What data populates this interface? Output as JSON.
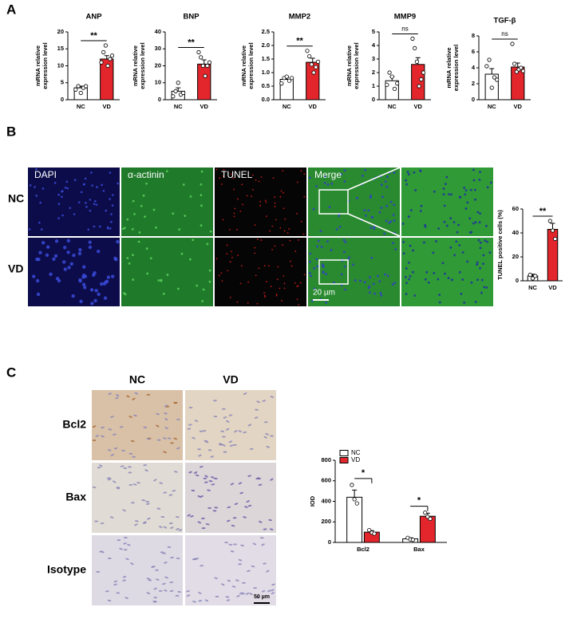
{
  "panel_labels": [
    "A",
    "B",
    "C"
  ],
  "panel_b": {
    "columns": [
      "DAPI",
      "α-actinin",
      "TUNEL",
      "Merge"
    ],
    "rows": [
      "NC",
      "VD"
    ],
    "scale_bar": "20 µm"
  },
  "panel_c": {
    "columns": [
      "NC",
      "VD"
    ],
    "rows": [
      "Bcl2",
      "Bax",
      "Isotype"
    ],
    "scale_bar": "50 µm"
  },
  "chart_data": [
    {
      "type": "bar",
      "title": "ANP",
      "ylabel_lines": [
        "mRNA relative",
        "expression level"
      ],
      "categories": [
        "NC",
        "VD"
      ],
      "values": [
        3.5,
        12
      ],
      "errors": [
        0.5,
        1
      ],
      "colors": [
        "#ffffff",
        "#e3262b"
      ],
      "points": [
        [
          3,
          4,
          2,
          3.5,
          4
        ],
        [
          11,
          14,
          16,
          10,
          12,
          13
        ]
      ],
      "annotation": "**",
      "ylim": [
        0,
        20
      ],
      "yticks": [
        0,
        5,
        10,
        15,
        20
      ]
    },
    {
      "type": "bar",
      "title": "BNP",
      "ylabel_lines": [
        "mRNA relative",
        "expression level"
      ],
      "categories": [
        "NC",
        "VD"
      ],
      "values": [
        5,
        21
      ],
      "errors": [
        2,
        2.5
      ],
      "colors": [
        "#ffffff",
        "#e3262b"
      ],
      "points": [
        [
          2,
          5,
          10,
          3,
          4
        ],
        [
          28,
          25,
          20,
          14,
          20,
          22
        ]
      ],
      "annotation": "**",
      "ylim": [
        0,
        40
      ],
      "yticks": [
        0,
        10,
        20,
        30,
        40
      ]
    },
    {
      "type": "bar",
      "title": "MMP2",
      "ylabel_lines": [
        "mRNA relative",
        "expression level"
      ],
      "categories": [
        "NC",
        "VD"
      ],
      "values": [
        0.75,
        1.38
      ],
      "errors": [
        0.07,
        0.15
      ],
      "colors": [
        "#ffffff",
        "#e3262b"
      ],
      "points": [
        [
          0.6,
          0.8,
          0.85,
          0.7,
          0.8
        ],
        [
          1.8,
          1.6,
          1.3,
          1.0,
          1.2,
          1.4
        ]
      ],
      "annotation": "**",
      "ylim": [
        0,
        2.5
      ],
      "yticks": [
        {
          "value": 0,
          "label": "0.0"
        },
        0.5,
        {
          "value": 1,
          "label": "1.0"
        },
        1.5,
        {
          "value": 2,
          "label": "2.0"
        },
        2.5
      ]
    },
    {
      "type": "bar",
      "title": "MMP9",
      "ylabel_lines": [
        "mRNA relative",
        "expression level"
      ],
      "categories": [
        "NC",
        "VD"
      ],
      "values": [
        1.4,
        2.6
      ],
      "errors": [
        0.3,
        0.5
      ],
      "colors": [
        "#ffffff",
        "#e3262b"
      ],
      "points": [
        [
          1.1,
          2.0,
          1.7,
          0.8,
          1.2
        ],
        [
          4.5,
          3.8,
          2.8,
          1.0,
          1.5,
          2.0
        ]
      ],
      "annotation": "ns",
      "ylim": [
        0,
        5
      ],
      "yticks": [
        0,
        1,
        2,
        3,
        4,
        5
      ]
    },
    {
      "type": "bar",
      "title": "TGF-β",
      "ylabel_lines": [
        "mRNA relative",
        "expression level"
      ],
      "categories": [
        "NC",
        "VD"
      ],
      "values": [
        3.2,
        4.1
      ],
      "errors": [
        0.7,
        0.5
      ],
      "colors": [
        "#ffffff",
        "#e3262b"
      ],
      "points": [
        [
          4.2,
          5.0,
          1.5,
          2.8,
          2.5
        ],
        [
          7.0,
          4.5,
          3.5,
          3.8,
          4.0,
          3.6
        ]
      ],
      "annotation": "ns",
      "ylim": [
        0,
        8
      ],
      "yticks": [
        0,
        2,
        4,
        6,
        8
      ]
    },
    {
      "type": "bar",
      "ylabel_lines": [
        "TUNEL positive cells (%)"
      ],
      "categories": [
        "NC",
        "VD"
      ],
      "values": [
        4,
        43
      ],
      "errors": [
        1.5,
        5
      ],
      "colors": [
        "#ffffff",
        "#e3262b"
      ],
      "points": [
        [
          5,
          2,
          4
        ],
        [
          50,
          42,
          35
        ]
      ],
      "annotation": "**",
      "ylim": [
        0,
        60
      ],
      "yticks": [
        0,
        20,
        40,
        60
      ]
    },
    {
      "type": "grouped_bar",
      "ylabel_lines": [
        "IOD"
      ],
      "categories": [
        "Bcl2",
        "Bax"
      ],
      "series": [
        {
          "name": "NC",
          "color": "#ffffff",
          "values": [
            440,
            35
          ],
          "errors": [
            70,
            10
          ],
          "points": [
            [
              560,
              420,
              380
            ],
            [
              45,
              30,
              25
            ]
          ]
        },
        {
          "name": "VD",
          "color": "#e3262b",
          "values": [
            100,
            255
          ],
          "errors": [
            15,
            30
          ],
          "points": [
            [
              120,
              95,
              85
            ],
            [
              290,
              250,
              230
            ]
          ]
        }
      ],
      "annotations": [
        "*",
        "*"
      ],
      "legend": "top-left",
      "ylim": [
        0,
        800
      ],
      "yticks": [
        0,
        200,
        400,
        600,
        800
      ]
    }
  ]
}
